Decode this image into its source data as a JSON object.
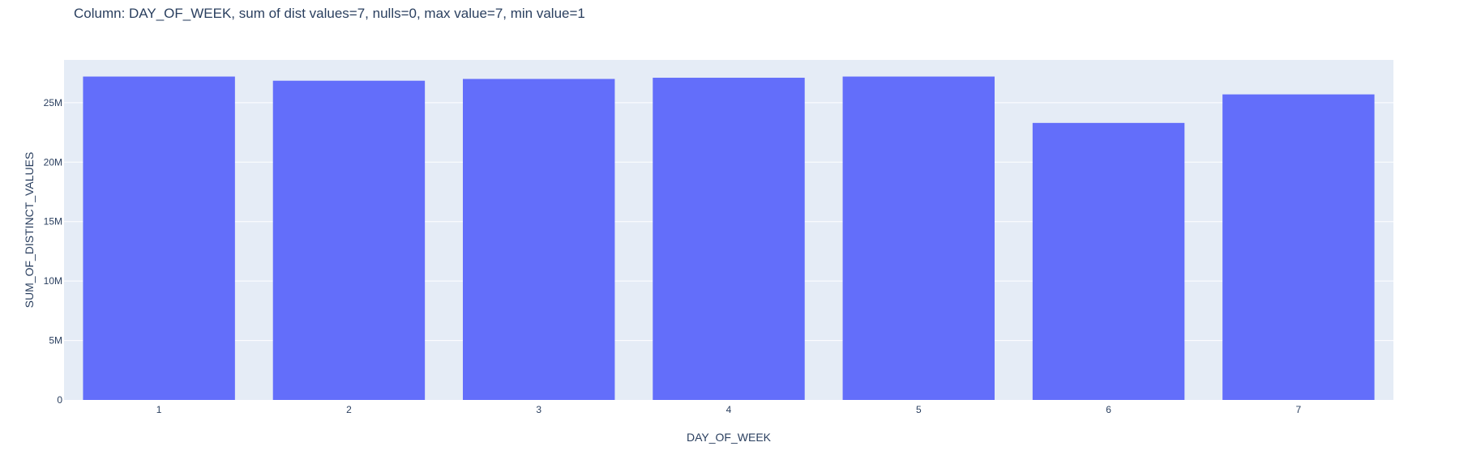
{
  "chart_data": {
    "type": "bar",
    "title": "Column: DAY_OF_WEEK, sum of dist values=7, nulls=0, max value=7, min value=1",
    "xlabel": "DAY_OF_WEEK",
    "ylabel": "SUM_OF_DISTINCT_VALUES",
    "categories": [
      "1",
      "2",
      "3",
      "4",
      "5",
      "6",
      "7"
    ],
    "values": [
      27200000,
      26850000,
      27000000,
      27100000,
      27200000,
      23300000,
      25700000
    ],
    "ylim": [
      0,
      28600000
    ],
    "yticks": [
      0,
      5000000,
      10000000,
      15000000,
      20000000,
      25000000
    ],
    "ytick_labels": [
      "0",
      "5M",
      "10M",
      "15M",
      "20M",
      "25M"
    ],
    "grid": true,
    "legend": "none",
    "colors": {
      "bar": "#636efa",
      "plot_background": "#e5ecf6",
      "grid": "#ffffff",
      "text": "#2a3f5f"
    }
  }
}
